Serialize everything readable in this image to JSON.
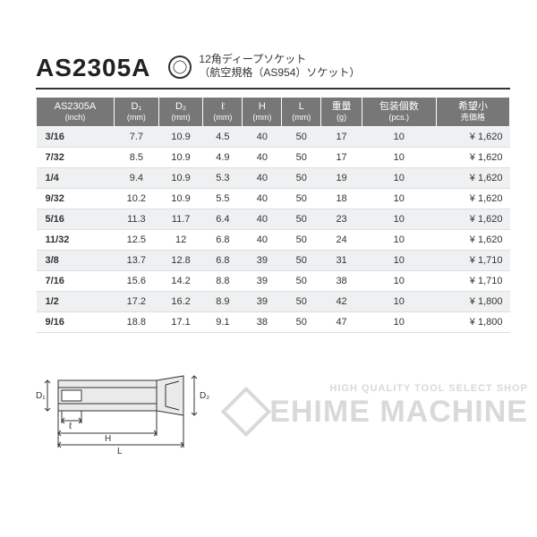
{
  "header": {
    "model": "AS2305A",
    "desc_line1": "12角ディープソケット",
    "desc_line2": "（航空規格（AS954）ソケット）"
  },
  "table": {
    "columns": [
      {
        "label": "AS2305A",
        "unit": "(inch)"
      },
      {
        "label": "D₁",
        "unit": "(mm)"
      },
      {
        "label": "D₂",
        "unit": "(mm)"
      },
      {
        "label": "ℓ",
        "unit": "(mm)"
      },
      {
        "label": "H",
        "unit": "(mm)"
      },
      {
        "label": "L",
        "unit": "(mm)"
      },
      {
        "label": "重量",
        "unit": "(g)"
      },
      {
        "label": "包装個数",
        "unit": "(pcs.)"
      },
      {
        "label": "希望小",
        "unit": "売価格"
      }
    ],
    "rows": [
      {
        "size": "3/16",
        "d1": "7.7",
        "d2": "10.9",
        "l": "4.5",
        "h": "40",
        "L": "50",
        "w": "17",
        "pcs": "10",
        "price": "¥ 1,620",
        "shade": true
      },
      {
        "size": "7/32",
        "d1": "8.5",
        "d2": "10.9",
        "l": "4.9",
        "h": "40",
        "L": "50",
        "w": "17",
        "pcs": "10",
        "price": "¥ 1,620",
        "shade": false
      },
      {
        "size": "1/4",
        "d1": "9.4",
        "d2": "10.9",
        "l": "5.3",
        "h": "40",
        "L": "50",
        "w": "19",
        "pcs": "10",
        "price": "¥ 1,620",
        "shade": true
      },
      {
        "size": "9/32",
        "d1": "10.2",
        "d2": "10.9",
        "l": "5.5",
        "h": "40",
        "L": "50",
        "w": "18",
        "pcs": "10",
        "price": "¥ 1,620",
        "shade": false
      },
      {
        "size": "5/16",
        "d1": "11.3",
        "d2": "11.7",
        "l": "6.4",
        "h": "40",
        "L": "50",
        "w": "23",
        "pcs": "10",
        "price": "¥ 1,620",
        "shade": true
      },
      {
        "size": "11/32",
        "d1": "12.5",
        "d2": "12",
        "l": "6.8",
        "h": "40",
        "L": "50",
        "w": "24",
        "pcs": "10",
        "price": "¥ 1,620",
        "shade": false
      },
      {
        "size": "3/8",
        "d1": "13.7",
        "d2": "12.8",
        "l": "6.8",
        "h": "39",
        "L": "50",
        "w": "31",
        "pcs": "10",
        "price": "¥ 1,710",
        "shade": true
      },
      {
        "size": "7/16",
        "d1": "15.6",
        "d2": "14.2",
        "l": "8.8",
        "h": "39",
        "L": "50",
        "w": "38",
        "pcs": "10",
        "price": "¥ 1,710",
        "shade": false
      },
      {
        "size": "1/2",
        "d1": "17.2",
        "d2": "16.2",
        "l": "8.9",
        "h": "39",
        "L": "50",
        "w": "42",
        "pcs": "10",
        "price": "¥ 1,800",
        "shade": true
      },
      {
        "size": "9/16",
        "d1": "18.8",
        "d2": "17.1",
        "l": "9.1",
        "h": "38",
        "L": "50",
        "w": "47",
        "pcs": "10",
        "price": "¥ 1,800",
        "shade": false
      }
    ]
  },
  "diagram": {
    "labels": {
      "d1": "D₁",
      "d2": "D₂",
      "l": "ℓ",
      "h": "H",
      "L": "L"
    },
    "stroke": "#333",
    "fill": "#e8e8e8"
  },
  "watermark": {
    "tag": "HIGH QUALITY TOOL SELECT SHOP",
    "brand": "EHIME MACHINE"
  },
  "colors": {
    "header_bg": "#777777",
    "row_shade": "#eef0f2",
    "text": "#333333",
    "watermark": "#d9d9d9"
  }
}
